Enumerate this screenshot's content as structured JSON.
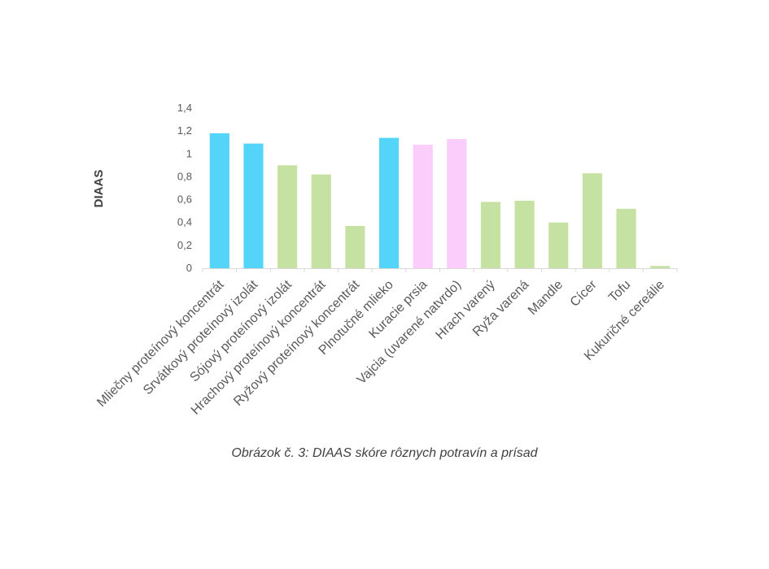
{
  "caption": "Obrázok č. 3: DIAAS skóre rôznych potravín a prísad",
  "chart_data": {
    "type": "bar",
    "ylabel": "DIAAS",
    "ylim": [
      0,
      1.4
    ],
    "yticks": [
      "0",
      "0,2",
      "0,4",
      "0,6",
      "0,8",
      "1",
      "1,2",
      "1,4"
    ],
    "grid": false,
    "categories": [
      "Mliečny proteínový koncentrát",
      "Srvátkový proteínový izolát",
      "Sójový proteínový izolát",
      "Hrachový proteínový koncentrát",
      "Ryžový proteínový koncentrát",
      "Plnotučné mlieko",
      "Kuracie prsia",
      "Vajcia (uvarené natvrdo)",
      "Hrach varený",
      "Ryža varená",
      "Mandle",
      "Cícer",
      "Tofu",
      "Kukuričné cereálie"
    ],
    "values": [
      1.18,
      1.09,
      0.9,
      0.82,
      0.37,
      1.14,
      1.08,
      1.13,
      0.58,
      0.59,
      0.4,
      0.83,
      0.52,
      0.02
    ],
    "colors": [
      "#55d4fa",
      "#55d4fa",
      "#c6e2a2",
      "#c6e2a2",
      "#c6e2a2",
      "#55d4fa",
      "#fbcdfb",
      "#fbcdfb",
      "#c6e2a2",
      "#c6e2a2",
      "#c6e2a2",
      "#c6e2a2",
      "#c6e2a2",
      "#c6e2a2"
    ]
  }
}
